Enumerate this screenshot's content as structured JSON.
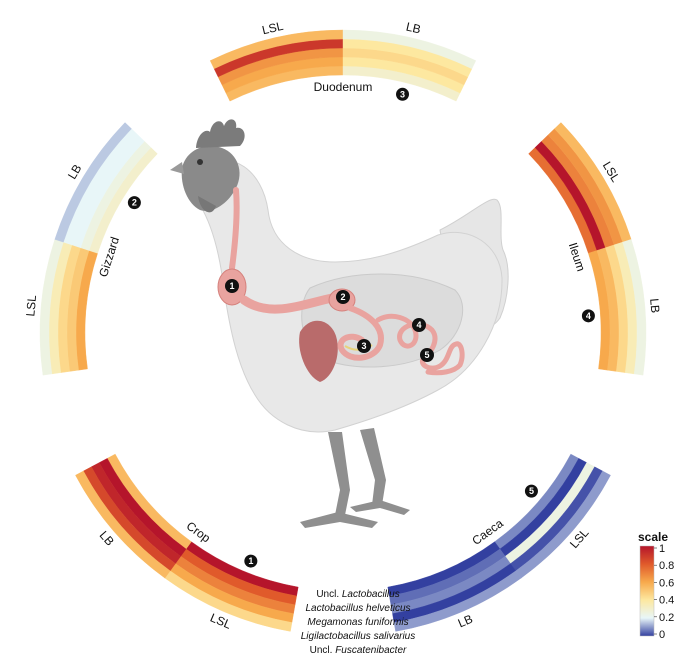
{
  "chart_data": {
    "type": "heatmap",
    "rows": [
      "Uncl. Lactobacillus",
      "Lactobacillus helveticus",
      "Megamonas funiformis",
      "Ligilactobacillus salivarius",
      "Uncl. Fuscatenibacter"
    ],
    "species": [
      {
        "prefix": "Uncl. ",
        "name": "Lactobacillus"
      },
      {
        "prefix": "",
        "name": "Lactobacillus helveticus"
      },
      {
        "prefix": "",
        "name": "Megamonas funiformis"
      },
      {
        "prefix": "",
        "name": "Ligilactobacillus salivarius"
      },
      {
        "prefix": "Uncl. ",
        "name": "Fuscatenibacter"
      }
    ],
    "sections": [
      {
        "name": "Duodenum",
        "number": "3",
        "groups": [
          {
            "label": "LSL",
            "values": [
              0.55,
              0.6,
              0.65,
              0.9,
              0.55
            ]
          },
          {
            "label": "LB",
            "values": [
              0.3,
              0.4,
              0.45,
              0.4,
              0.25
            ]
          }
        ]
      },
      {
        "name": "Ileum",
        "number": "4",
        "groups": [
          {
            "label": "LSL",
            "values": [
              0.75,
              1.0,
              0.7,
              0.65,
              0.55
            ]
          },
          {
            "label": "LB",
            "values": [
              0.6,
              0.55,
              0.45,
              0.35,
              0.25
            ]
          }
        ]
      },
      {
        "name": "Caeca",
        "number": "5",
        "groups": [
          {
            "label": "LSL",
            "values": [
              0.08,
              0.0,
              0.25,
              0.02,
              0.1
            ]
          },
          {
            "label": "LB",
            "values": [
              0.0,
              0.05,
              0.08,
              0.0,
              0.1
            ]
          }
        ]
      },
      {
        "name": "Crop",
        "number": "1",
        "groups": [
          {
            "label": "LSL",
            "values": [
              1.0,
              0.8,
              0.7,
              0.6,
              0.45
            ]
          },
          {
            "label": "LB",
            "values": [
              0.55,
              1.0,
              0.95,
              0.85,
              0.55
            ]
          }
        ]
      },
      {
        "name": "Gizzard",
        "number": "2",
        "groups": [
          {
            "label": "LSL",
            "values": [
              0.6,
              0.5,
              0.45,
              0.35,
              0.25
            ]
          },
          {
            "label": "LB",
            "values": [
              0.3,
              0.25,
              0.2,
              0.2,
              0.15
            ]
          }
        ]
      }
    ],
    "colorscale": {
      "title": "scale",
      "ticks": [
        "1",
        "0.8",
        "0.6",
        "0.4",
        "0.2",
        "0"
      ],
      "range": [
        0,
        1
      ],
      "stops": [
        "#3340a0",
        "#e8f6f8",
        "#fde8a0",
        "#f7a94c",
        "#e05a2b",
        "#b5152b"
      ]
    }
  },
  "organs": [
    {
      "number": "1"
    },
    {
      "number": "2"
    },
    {
      "number": "3"
    },
    {
      "number": "4"
    },
    {
      "number": "5"
    }
  ]
}
